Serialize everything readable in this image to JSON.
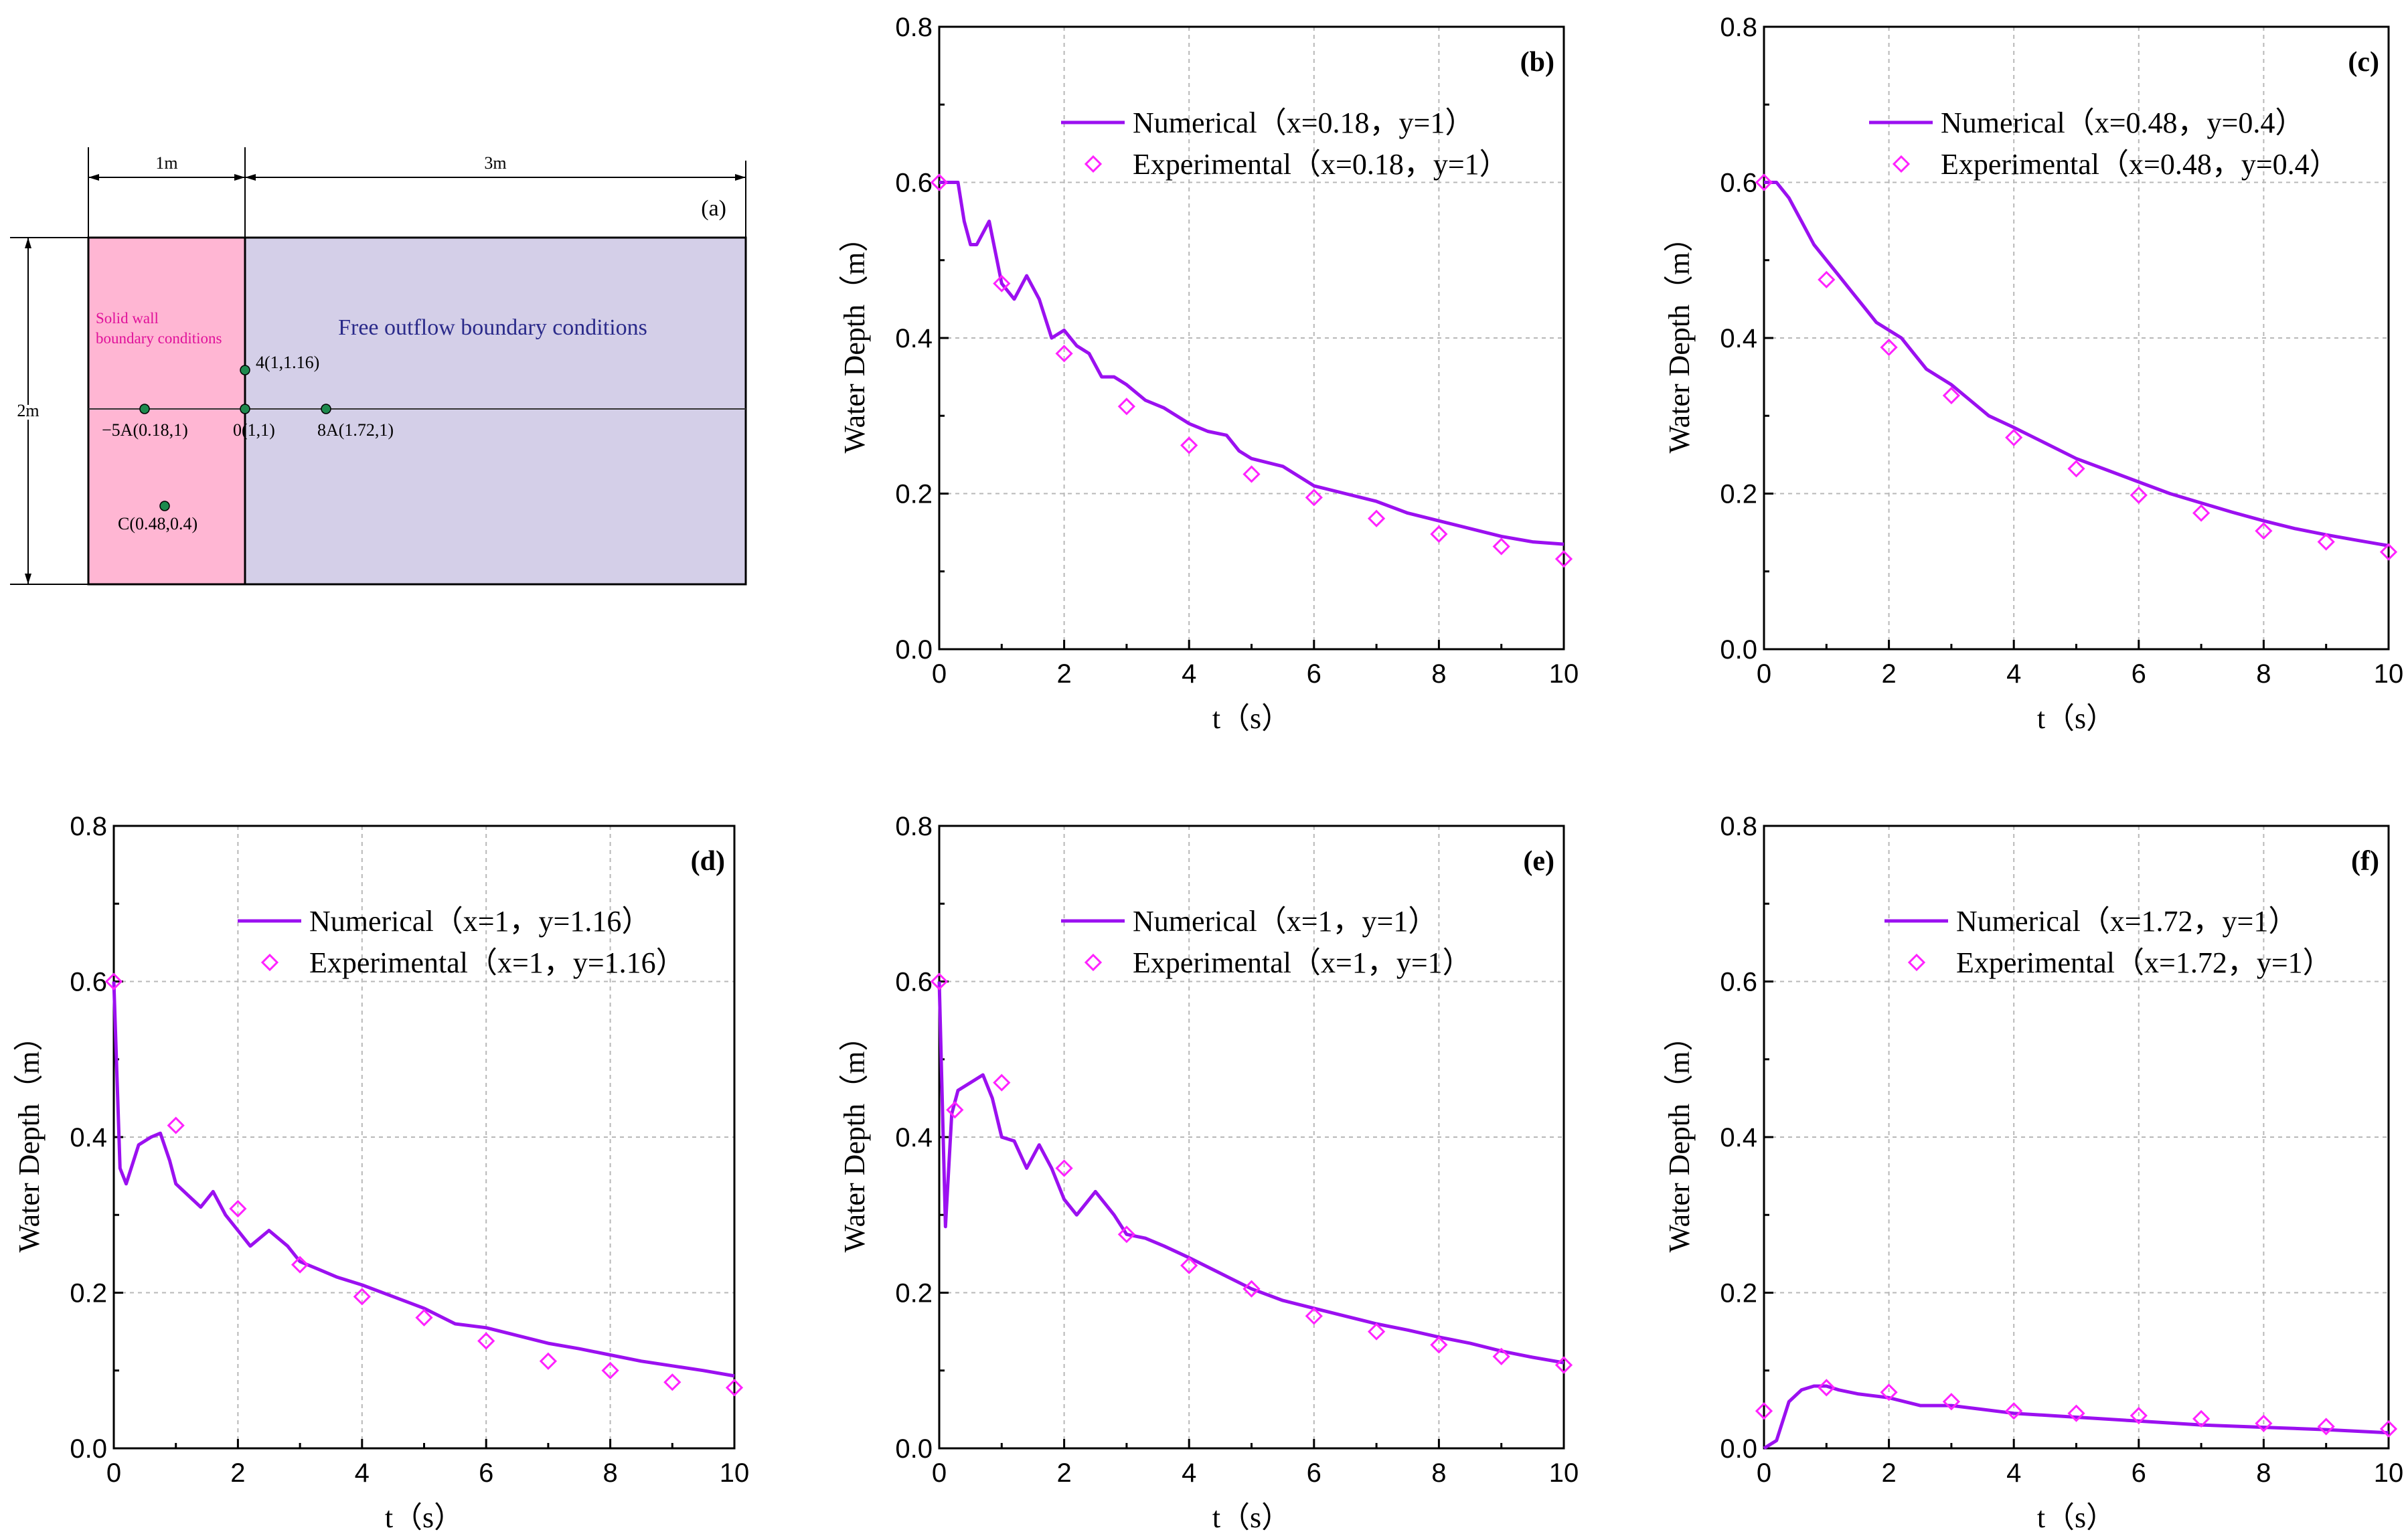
{
  "colors": {
    "numerical": "#9b10f0",
    "experimental": "#ff22ff",
    "solid_region": "#ffb6d3",
    "free_region": "#d4cfe8",
    "point": "#1e8a4e"
  },
  "diagram": {
    "panel_label": "(a)",
    "dim_left": "1m",
    "dim_right": "3m",
    "dim_height": "2m",
    "solid_wall_label_1": "Solid wall",
    "solid_wall_label_2": "boundary conditions",
    "free_label": "Free outflow boundary conditions",
    "points": [
      {
        "label": "4(1,1.16)"
      },
      {
        "label": "−5A(0.18,1)"
      },
      {
        "label": "0(1,1)"
      },
      {
        "label": "8A(1.72,1)"
      },
      {
        "label": "C(0.48,0.4)"
      }
    ]
  },
  "chart_data": [
    {
      "panel": "(b)",
      "type": "line",
      "xlabel": "t（s）",
      "ylabel": "Water Depth（m）",
      "xlim": [
        0,
        10
      ],
      "ylim": [
        0,
        0.8
      ],
      "xticks": [
        "0",
        "2",
        "4",
        "6",
        "8",
        "10"
      ],
      "yticks": [
        "0.0",
        "0.2",
        "0.4",
        "0.6",
        "0.8"
      ],
      "legend": [
        "Numerical（x=0.18，y=1）",
        "Experimental（x=0.18，y=1）"
      ],
      "numerical": {
        "x": [
          0,
          0.3,
          0.4,
          0.5,
          0.6,
          0.8,
          1,
          1.2,
          1.4,
          1.6,
          1.8,
          2,
          2.2,
          2.4,
          2.6,
          2.8,
          3,
          3.3,
          3.6,
          4,
          4.3,
          4.6,
          4.8,
          5,
          5.5,
          6,
          6.5,
          7,
          7.5,
          8,
          8.5,
          9,
          9.5,
          10
        ],
        "y": [
          0.6,
          0.6,
          0.55,
          0.52,
          0.52,
          0.55,
          0.47,
          0.45,
          0.48,
          0.45,
          0.4,
          0.41,
          0.39,
          0.38,
          0.35,
          0.35,
          0.34,
          0.32,
          0.31,
          0.29,
          0.28,
          0.275,
          0.255,
          0.245,
          0.235,
          0.21,
          0.2,
          0.19,
          0.175,
          0.165,
          0.155,
          0.145,
          0.138,
          0.135
        ]
      },
      "experimental": {
        "x": [
          0,
          1,
          2,
          3,
          4,
          5,
          6,
          7,
          8,
          9,
          10
        ],
        "y": [
          0.6,
          0.47,
          0.38,
          0.312,
          0.262,
          0.225,
          0.195,
          0.168,
          0.148,
          0.132,
          0.116
        ]
      }
    },
    {
      "panel": "(c)",
      "type": "line",
      "xlabel": "t（s）",
      "ylabel": "Water Depth（m）",
      "xlim": [
        0,
        10
      ],
      "ylim": [
        0,
        0.8
      ],
      "xticks": [
        "0",
        "2",
        "4",
        "6",
        "8",
        "10"
      ],
      "yticks": [
        "0.0",
        "0.2",
        "0.4",
        "0.6",
        "0.8"
      ],
      "legend": [
        "Numerical（x=0.48，y=0.4）",
        "Experimental（x=0.48，y=0.4）"
      ],
      "numerical": {
        "x": [
          0,
          0.2,
          0.4,
          0.6,
          0.8,
          1,
          1.2,
          1.4,
          1.6,
          1.8,
          2,
          2.2,
          2.4,
          2.6,
          2.8,
          3,
          3.3,
          3.6,
          4,
          4.5,
          5,
          5.5,
          6,
          6.5,
          7,
          7.5,
          8,
          8.5,
          9,
          9.5,
          10
        ],
        "y": [
          0.6,
          0.6,
          0.58,
          0.55,
          0.52,
          0.5,
          0.48,
          0.46,
          0.44,
          0.42,
          0.41,
          0.4,
          0.38,
          0.36,
          0.35,
          0.34,
          0.32,
          0.3,
          0.285,
          0.265,
          0.245,
          0.23,
          0.215,
          0.2,
          0.188,
          0.176,
          0.165,
          0.155,
          0.147,
          0.14,
          0.133
        ]
      },
      "experimental": {
        "x": [
          0,
          1,
          2,
          3,
          4,
          5,
          6,
          7,
          8,
          9,
          10
        ],
        "y": [
          0.6,
          0.475,
          0.388,
          0.326,
          0.272,
          0.232,
          0.198,
          0.175,
          0.152,
          0.138,
          0.125
        ]
      }
    },
    {
      "panel": "(d)",
      "type": "line",
      "xlabel": "t（s）",
      "ylabel": "Water Depth（m）",
      "xlim": [
        0,
        10
      ],
      "ylim": [
        0,
        0.8
      ],
      "xticks": [
        "0",
        "2",
        "4",
        "6",
        "8",
        "10"
      ],
      "yticks": [
        "0.0",
        "0.2",
        "0.4",
        "0.6",
        "0.8"
      ],
      "legend": [
        "Numerical（x=1，y=1.16）",
        "Experimental（x=1，y=1.16）"
      ],
      "numerical": {
        "x": [
          0,
          0.1,
          0.2,
          0.4,
          0.6,
          0.75,
          0.9,
          1,
          1.2,
          1.4,
          1.6,
          1.8,
          2,
          2.2,
          2.5,
          2.8,
          3,
          3.3,
          3.6,
          4,
          4.5,
          5,
          5.5,
          6,
          6.5,
          7,
          7.5,
          8,
          8.5,
          9,
          9.5,
          10
        ],
        "y": [
          0.6,
          0.36,
          0.34,
          0.39,
          0.4,
          0.405,
          0.37,
          0.34,
          0.325,
          0.31,
          0.33,
          0.3,
          0.28,
          0.26,
          0.28,
          0.26,
          0.24,
          0.23,
          0.22,
          0.21,
          0.195,
          0.18,
          0.16,
          0.155,
          0.145,
          0.135,
          0.128,
          0.12,
          0.112,
          0.106,
          0.1,
          0.093
        ]
      },
      "experimental": {
        "x": [
          0,
          1,
          2,
          3,
          4,
          5,
          6,
          7,
          8,
          9,
          10
        ],
        "y": [
          0.6,
          0.415,
          0.308,
          0.236,
          0.195,
          0.168,
          0.138,
          0.112,
          0.1,
          0.085,
          0.078
        ]
      }
    },
    {
      "panel": "(e)",
      "type": "line",
      "xlabel": "t（s）",
      "ylabel": "Water Depth（m）",
      "xlim": [
        0,
        10
      ],
      "ylim": [
        0,
        0.8
      ],
      "xticks": [
        "0",
        "2",
        "4",
        "6",
        "8",
        "10"
      ],
      "yticks": [
        "0.0",
        "0.2",
        "0.4",
        "0.6",
        "0.8"
      ],
      "legend": [
        "Numerical（x=1，y=1）",
        "Experimental（x=1，y=1）"
      ],
      "numerical": {
        "x": [
          0,
          0.1,
          0.2,
          0.3,
          0.5,
          0.7,
          0.85,
          1,
          1.2,
          1.4,
          1.6,
          1.8,
          2,
          2.2,
          2.5,
          2.8,
          3,
          3.3,
          3.6,
          4,
          4.5,
          5,
          5.5,
          6,
          6.5,
          7,
          7.5,
          8,
          8.5,
          9,
          9.5,
          10
        ],
        "y": [
          0.6,
          0.285,
          0.43,
          0.46,
          0.47,
          0.48,
          0.45,
          0.4,
          0.395,
          0.36,
          0.39,
          0.36,
          0.32,
          0.3,
          0.33,
          0.3,
          0.275,
          0.27,
          0.26,
          0.245,
          0.225,
          0.205,
          0.19,
          0.18,
          0.17,
          0.16,
          0.152,
          0.143,
          0.135,
          0.125,
          0.117,
          0.11
        ]
      },
      "experimental": {
        "x": [
          0,
          0.25,
          1,
          2,
          3,
          4,
          5,
          6,
          7,
          8,
          9,
          10
        ],
        "y": [
          0.6,
          0.435,
          0.47,
          0.36,
          0.275,
          0.235,
          0.205,
          0.17,
          0.15,
          0.133,
          0.118,
          0.107
        ]
      }
    },
    {
      "panel": "(f)",
      "type": "line",
      "xlabel": "t（s）",
      "ylabel": "Water Depth（m）",
      "xlim": [
        0,
        10
      ],
      "ylim": [
        0,
        0.8
      ],
      "xticks": [
        "0",
        "2",
        "4",
        "6",
        "8",
        "10"
      ],
      "yticks": [
        "0.0",
        "0.2",
        "0.4",
        "0.6",
        "0.8"
      ],
      "legend": [
        "Numerical（x=1.72，y=1）",
        "Experimental（x=1.72，y=1）"
      ],
      "numerical": {
        "x": [
          0,
          0.2,
          0.4,
          0.6,
          0.8,
          1,
          1.2,
          1.5,
          2,
          2.5,
          3,
          3.5,
          4,
          5,
          6,
          7,
          8,
          9,
          10
        ],
        "y": [
          0,
          0.01,
          0.06,
          0.075,
          0.08,
          0.08,
          0.075,
          0.07,
          0.065,
          0.055,
          0.055,
          0.05,
          0.045,
          0.04,
          0.035,
          0.03,
          0.027,
          0.024,
          0.02
        ]
      },
      "experimental": {
        "x": [
          0,
          1,
          2,
          3,
          4,
          5,
          6,
          7,
          8,
          9,
          10
        ],
        "y": [
          0.048,
          0.078,
          0.072,
          0.06,
          0.048,
          0.045,
          0.042,
          0.038,
          0.032,
          0.028,
          0.025
        ]
      }
    }
  ]
}
